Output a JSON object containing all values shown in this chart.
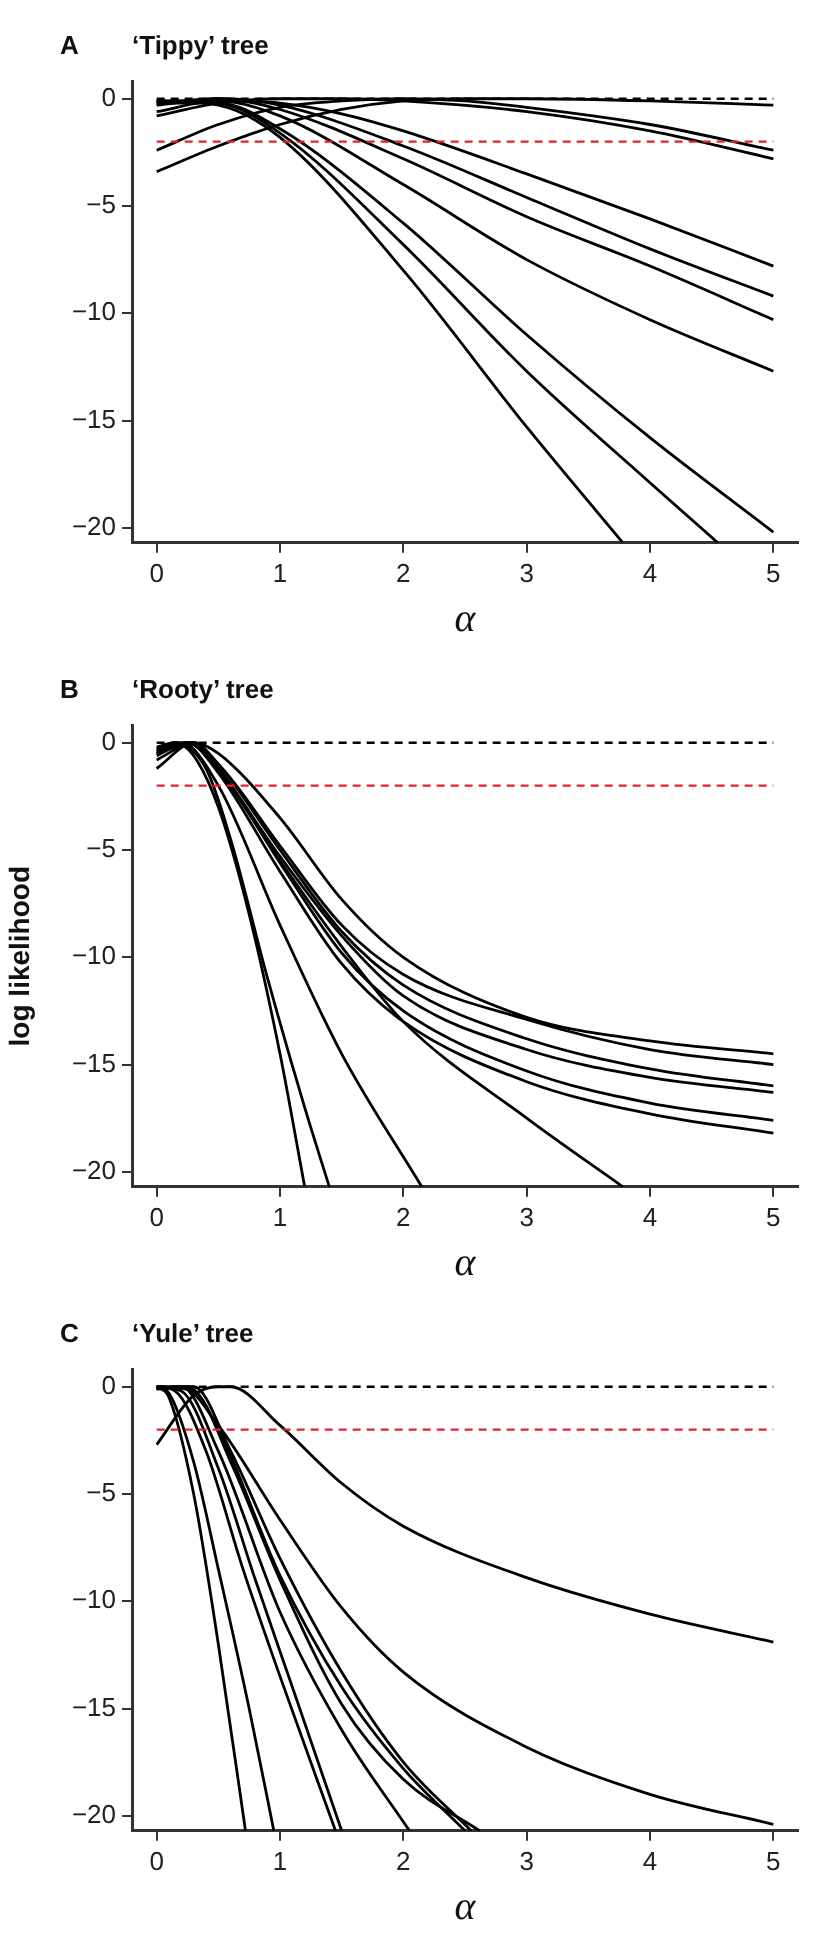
{
  "chart_data": [
    {
      "type": "line",
      "title": "‘Tippy’ tree",
      "annotations": [
        "A"
      ],
      "xlabel": "α",
      "legend": false,
      "marker": "none",
      "line_style": "solid",
      "xlim": [
        -0.2,
        5.2
      ],
      "xticks": [
        0,
        1,
        2,
        3,
        4,
        5
      ],
      "ylim": [
        -20.7,
        0.8
      ],
      "yticks": [
        {
          "value": -20,
          "label": "−20"
        },
        {
          "value": -15,
          "label": "−15"
        },
        {
          "value": -10,
          "label": "−10"
        },
        {
          "value": -5,
          "label": "−5"
        },
        {
          "value": 0,
          "label": "0"
        }
      ],
      "tick_labels": "xy",
      "ref_lines": [
        {
          "axis": "y",
          "value": 0,
          "color": "#000000",
          "line_style": "dashed"
        },
        {
          "axis": "y",
          "value": -2,
          "color": "#e8202a",
          "line_style": "dashed"
        }
      ],
      "series": [
        {
          "color": "#000000",
          "x": [
            0,
            0.5,
            1,
            1.5,
            2,
            2.5,
            3,
            4,
            5
          ],
          "values": [
            -3.4,
            -2.2,
            -1.2,
            -0.5,
            -0.1,
            0,
            0,
            -0.1,
            -0.3
          ]
        },
        {
          "color": "#000000",
          "x": [
            0,
            0.5,
            1,
            1.5,
            2,
            2.5,
            3,
            4,
            5
          ],
          "values": [
            -2.4,
            -1.2,
            -0.4,
            -0.1,
            0,
            -0.1,
            -0.4,
            -1.2,
            -2.4
          ]
        },
        {
          "color": "#000000",
          "x": [
            0,
            0.5,
            1,
            1.5,
            2,
            3,
            4,
            5
          ],
          "values": [
            -0.8,
            -0.2,
            0,
            0,
            -0.1,
            -0.6,
            -1.5,
            -2.8
          ]
        },
        {
          "color": "#000000",
          "x": [
            0,
            0.5,
            1,
            1.5,
            2,
            3,
            4,
            5
          ],
          "values": [
            -0.6,
            -0.1,
            -0.2,
            -0.7,
            -1.5,
            -3.5,
            -5.6,
            -7.8
          ]
        },
        {
          "color": "#000000",
          "x": [
            0,
            0.5,
            1,
            2,
            3,
            4,
            5
          ],
          "values": [
            -0.3,
            0,
            -0.3,
            -2.2,
            -4.6,
            -7.0,
            -9.2
          ]
        },
        {
          "color": "#000000",
          "x": [
            0,
            0.5,
            1,
            2,
            3,
            4,
            5
          ],
          "values": [
            -0.2,
            0,
            -0.5,
            -2.8,
            -5.5,
            -7.8,
            -10.3
          ]
        },
        {
          "color": "#000000",
          "x": [
            0,
            0.5,
            1,
            2,
            3,
            4,
            5
          ],
          "values": [
            -0.1,
            -0.1,
            -0.8,
            -4.0,
            -7.5,
            -10.3,
            -12.7
          ]
        },
        {
          "color": "#000000",
          "x": [
            0,
            0.5,
            1,
            2,
            3,
            4,
            5
          ],
          "values": [
            -0.2,
            -0.2,
            -1.4,
            -5.8,
            -11,
            -15.8,
            -20.2
          ]
        },
        {
          "color": "#000000",
          "x": [
            0,
            0.5,
            1,
            2,
            3,
            4,
            4.55
          ],
          "values": [
            -0.1,
            -0.2,
            -1.6,
            -6.8,
            -12.7,
            -17.9,
            -20.7
          ]
        },
        {
          "color": "#000000",
          "x": [
            0,
            0.5,
            1,
            2,
            3,
            3.78
          ],
          "values": [
            -0.1,
            -0.3,
            -1.8,
            -8.0,
            -15.3,
            -20.7
          ]
        }
      ]
    },
    {
      "type": "line",
      "title": "‘Rooty’ tree",
      "annotations": [
        "B"
      ],
      "xlabel": "α",
      "ylabel": "log likelihood",
      "legend": false,
      "marker": "none",
      "line_style": "solid",
      "xlim": [
        -0.2,
        5.2
      ],
      "xticks": [
        0,
        1,
        2,
        3,
        4,
        5
      ],
      "ylim": [
        -20.7,
        0.8
      ],
      "yticks": [
        {
          "value": -20,
          "label": "−20"
        },
        {
          "value": -15,
          "label": "−15"
        },
        {
          "value": -10,
          "label": "−10"
        },
        {
          "value": -5,
          "label": "−5"
        },
        {
          "value": 0,
          "label": "0"
        }
      ],
      "tick_labels": "xy",
      "ref_lines": [
        {
          "axis": "y",
          "value": 0,
          "color": "#000000",
          "line_style": "dashed"
        },
        {
          "axis": "y",
          "value": -2,
          "color": "#e8202a",
          "line_style": "dashed"
        }
      ],
      "series": [
        {
          "color": "#000000",
          "x": [
            0,
            0.15,
            0.3,
            0.5,
            0.75,
            1,
            1.2
          ],
          "values": [
            -0.3,
            0,
            -0.6,
            -3.0,
            -8,
            -14.5,
            -20.7
          ]
        },
        {
          "color": "#000000",
          "x": [
            0,
            0.15,
            0.4,
            0.6,
            0.9,
            1.2,
            1.4
          ],
          "values": [
            -0.2,
            0,
            -1.2,
            -4.5,
            -11,
            -17,
            -20.7
          ]
        },
        {
          "color": "#000000",
          "x": [
            0,
            0.2,
            0.5,
            1,
            1.5,
            2.15
          ],
          "values": [
            -0.4,
            0,
            -2,
            -8.5,
            -14.5,
            -20.7
          ]
        },
        {
          "color": "#000000",
          "x": [
            0,
            0.25,
            0.5,
            1,
            1.5,
            2,
            3,
            3.78
          ],
          "values": [
            -0.5,
            0,
            -1.3,
            -5.5,
            -9.5,
            -13,
            -17.5,
            -20.7
          ]
        },
        {
          "color": "#000000",
          "x": [
            0,
            0.3,
            0.5,
            1,
            1.5,
            2,
            3,
            4,
            5
          ],
          "values": [
            -0.5,
            0,
            -0.5,
            -3.5,
            -7.3,
            -10,
            -12.8,
            -13.9,
            -14.5
          ]
        },
        {
          "color": "#000000",
          "x": [
            0,
            0.25,
            0.5,
            1,
            1.5,
            2,
            3,
            4,
            5
          ],
          "values": [
            -0.3,
            0,
            -1,
            -4.8,
            -8.5,
            -10.8,
            -12.9,
            -14.3,
            -15.0
          ]
        },
        {
          "color": "#000000",
          "x": [
            0,
            0.3,
            0.5,
            1,
            1.5,
            2,
            3,
            4,
            5
          ],
          "values": [
            -0.8,
            0,
            -1,
            -5,
            -8.8,
            -11.3,
            -13.8,
            -15.2,
            -16.0
          ]
        },
        {
          "color": "#000000",
          "x": [
            0,
            0.3,
            0.5,
            1,
            1.5,
            2,
            3,
            4,
            5
          ],
          "values": [
            -1.2,
            0,
            -1.2,
            -5.3,
            -9,
            -11.8,
            -14.3,
            -15.6,
            -16.3
          ]
        },
        {
          "color": "#000000",
          "x": [
            0,
            0.25,
            0.5,
            1,
            1.5,
            2,
            3,
            4,
            5
          ],
          "values": [
            -0.6,
            0,
            -1.2,
            -5.6,
            -9.8,
            -12.5,
            -15.3,
            -16.8,
            -17.6
          ]
        },
        {
          "color": "#000000",
          "x": [
            0,
            0.25,
            0.5,
            1,
            1.5,
            2,
            3,
            4,
            5
          ],
          "values": [
            -0.4,
            0,
            -1.4,
            -6,
            -10.3,
            -13,
            -15.8,
            -17.3,
            -18.2
          ]
        }
      ]
    },
    {
      "type": "line",
      "title": "‘Yule’ tree",
      "annotations": [
        "C"
      ],
      "xlabel": "α",
      "legend": false,
      "marker": "none",
      "line_style": "solid",
      "xlim": [
        -0.2,
        5.2
      ],
      "xticks": [
        0,
        1,
        2,
        3,
        4,
        5
      ],
      "ylim": [
        -20.7,
        0.8
      ],
      "yticks": [
        {
          "value": -20,
          "label": "−20"
        },
        {
          "value": -15,
          "label": "−15"
        },
        {
          "value": -10,
          "label": "−10"
        },
        {
          "value": -5,
          "label": "−5"
        },
        {
          "value": 0,
          "label": "0"
        }
      ],
      "tick_labels": "xy",
      "ref_lines": [
        {
          "axis": "y",
          "value": 0,
          "color": "#000000",
          "line_style": "dashed"
        },
        {
          "axis": "y",
          "value": -2,
          "color": "#e8202a",
          "line_style": "dashed"
        }
      ],
      "series": [
        {
          "color": "#000000",
          "x": [
            0,
            0.3,
            0.5,
            0.6,
            1,
            1.5,
            2,
            3,
            4,
            5
          ],
          "values": [
            -2.7,
            -0.4,
            0,
            0,
            -1.8,
            -4.5,
            -6.5,
            -8.9,
            -10.6,
            -11.9
          ]
        },
        {
          "color": "#000000",
          "x": [
            0,
            0.2,
            0.5,
            1,
            1.5,
            2,
            3,
            4,
            5
          ],
          "values": [
            -0.1,
            0,
            -1.8,
            -6.2,
            -10.3,
            -13.3,
            -16.8,
            -19,
            -20.4
          ]
        },
        {
          "color": "#000000",
          "x": [
            0,
            0.1,
            0.3,
            0.5,
            0.72
          ],
          "values": [
            0,
            -0.5,
            -5,
            -12,
            -20.7
          ]
        },
        {
          "color": "#000000",
          "x": [
            0,
            0.1,
            0.3,
            0.5,
            0.75,
            0.95
          ],
          "values": [
            0,
            -0.3,
            -3.5,
            -8.5,
            -15,
            -20.7
          ]
        },
        {
          "color": "#000000",
          "x": [
            0,
            0.15,
            0.4,
            0.7,
            1,
            1.45
          ],
          "values": [
            0,
            -0.2,
            -3,
            -8.5,
            -13.5,
            -20.7
          ]
        },
        {
          "color": "#000000",
          "x": [
            0,
            0.2,
            0.5,
            0.8,
            1.1,
            1.5
          ],
          "values": [
            0,
            -0.2,
            -3.8,
            -9,
            -14,
            -20.7
          ]
        },
        {
          "color": "#000000",
          "x": [
            0,
            0.2,
            0.5,
            1,
            1.5,
            2.05
          ],
          "values": [
            0,
            0,
            -3,
            -10.5,
            -16,
            -20.7
          ]
        },
        {
          "color": "#000000",
          "x": [
            0,
            0.25,
            0.5,
            1,
            1.5,
            2,
            2.5
          ],
          "values": [
            -0.1,
            0,
            -2,
            -8.8,
            -14,
            -17.8,
            -20.7
          ]
        },
        {
          "color": "#000000",
          "x": [
            0,
            0.3,
            0.6,
            1,
            1.5,
            2,
            2.55
          ],
          "values": [
            -0.1,
            0,
            -3,
            -8,
            -13.3,
            -17.5,
            -20.7
          ]
        },
        {
          "color": "#000000",
          "x": [
            0,
            0.3,
            0.6,
            1,
            1.5,
            2,
            2.62
          ],
          "values": [
            0,
            -0.2,
            -3.5,
            -9,
            -14.8,
            -18.3,
            -20.7
          ]
        }
      ]
    }
  ]
}
